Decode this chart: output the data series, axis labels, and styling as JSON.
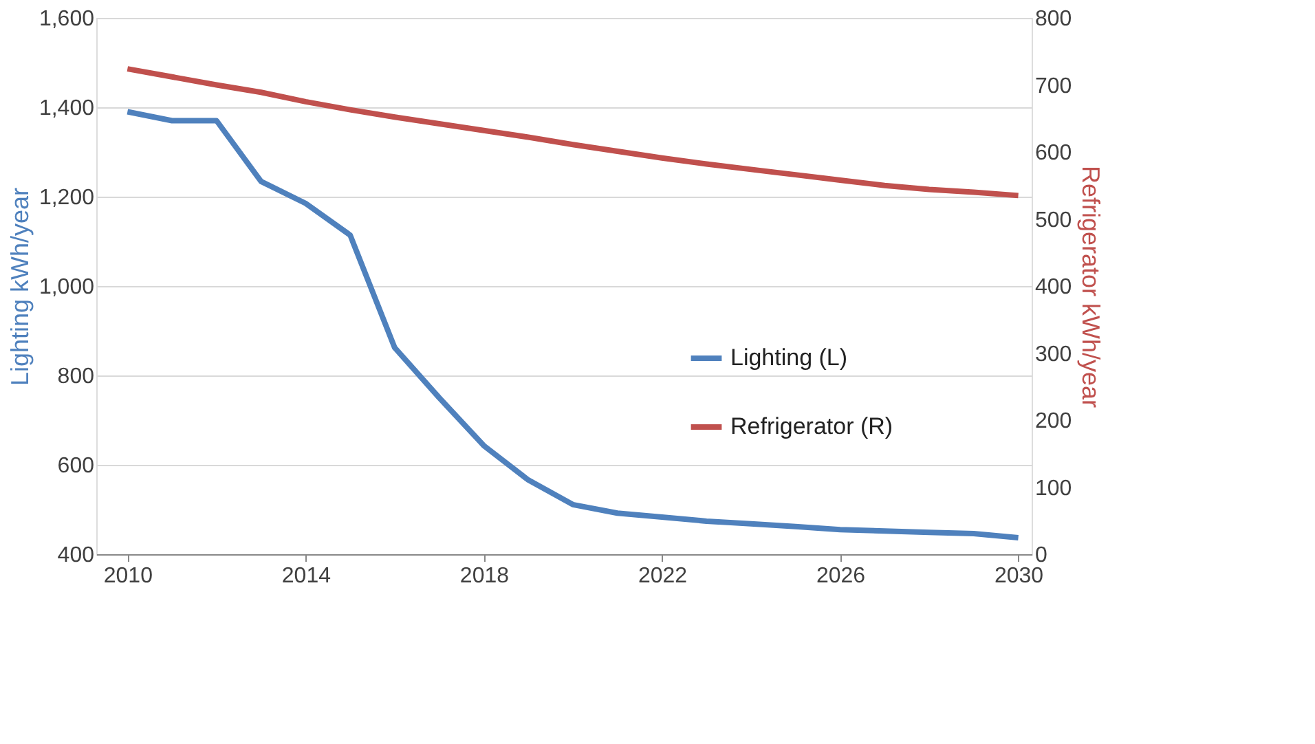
{
  "chart_data": {
    "type": "line",
    "xlim": [
      2009.3,
      2030.3
    ],
    "xticks": [
      2010,
      2014,
      2018,
      2022,
      2026,
      2030
    ],
    "ylabel": "Lighting kWh/year",
    "y2label": "Refrigerator kWh/year",
    "ylim": [
      400,
      1600
    ],
    "yticks": [
      {
        "value": 400,
        "label": "400"
      },
      {
        "value": 600,
        "label": "600"
      },
      {
        "value": 800,
        "label": "800"
      },
      {
        "value": 1000,
        "label": "1,000"
      },
      {
        "value": 1200,
        "label": "1,200"
      },
      {
        "value": 1400,
        "label": "1,400"
      },
      {
        "value": 1600,
        "label": "1,600"
      }
    ],
    "y2lim": [
      0,
      800
    ],
    "y2ticks": [
      0,
      100,
      200,
      300,
      400,
      500,
      600,
      700,
      800
    ],
    "grid": "y",
    "legend": "right",
    "marker": "none",
    "line_style": "solid",
    "x": [
      2010,
      2011,
      2012,
      2013,
      2014,
      2015,
      2016,
      2017,
      2018,
      2019,
      2020,
      2021,
      2022,
      2023,
      2024,
      2025,
      2026,
      2027,
      2028,
      2029,
      2030
    ],
    "series": [
      {
        "name": "Lighting (L)",
        "color": "#4f81bd",
        "values": [
          1390,
          1370,
          1370,
          1234,
          1185,
          1114,
          862,
          750,
          643,
          566,
          511,
          492,
          483,
          474,
          468,
          462,
          455,
          452,
          449,
          446,
          437
        ]
      },
      {
        "name": "Refrigerator (R)",
        "color": "#c0504d",
        "axis": "y2",
        "values": [
          724,
          712,
          700,
          689,
          675,
          663,
          652,
          642,
          632,
          622,
          611,
          601,
          591,
          582,
          574,
          566,
          558,
          550,
          544,
          540,
          535
        ]
      }
    ]
  }
}
